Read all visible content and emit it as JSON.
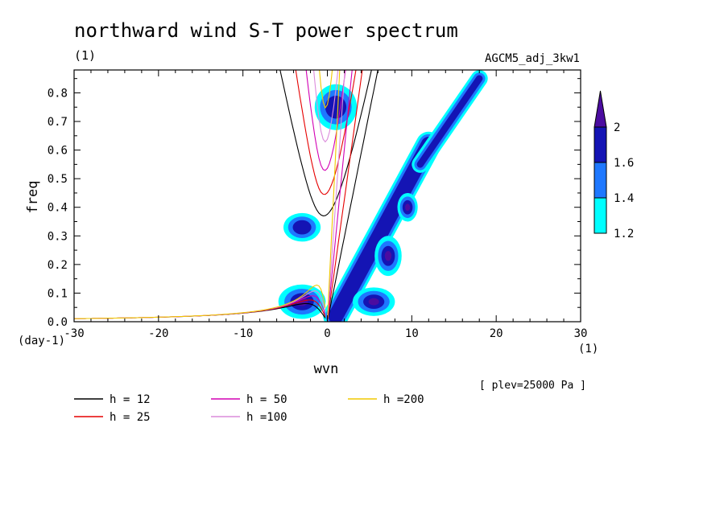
{
  "chart_data": {
    "type": "heatmap",
    "title": "northward wind S-T power spectrum",
    "subtitle_left": "(1)",
    "subtitle_right": "AGCM5_adj_3kw1",
    "xlabel": "wvn",
    "ylabel": "freq",
    "x_unit": "(1)",
    "y_unit": "(day-1)",
    "xlim": [
      -30,
      30
    ],
    "ylim": [
      0,
      0.88
    ],
    "x_ticks": [
      -30,
      -20,
      -10,
      0,
      10,
      20,
      30
    ],
    "x_tick_labels": [
      "-30",
      "-20",
      "-10",
      "0",
      "10",
      "20",
      "30"
    ],
    "y_ticks": [
      0,
      0.1,
      0.2,
      0.3,
      0.4,
      0.5,
      0.6,
      0.7,
      0.8
    ],
    "y_tick_labels": [
      "0.0",
      "0.1",
      "0.2",
      "0.3",
      "0.4",
      "0.5",
      "0.6",
      "0.7",
      "0.8"
    ],
    "annotation": "[ plev=25000 Pa ]",
    "colorbar": {
      "levels": [
        1.2,
        1.4,
        1.6,
        2
      ],
      "level_labels": [
        "1.2",
        "1.4",
        "1.6",
        "2"
      ],
      "colors": [
        "#00ffff",
        "#1e78ff",
        "#1414b4",
        "#4b0ca0"
      ]
    },
    "dispersion_curves": [
      {
        "label": "h = 12",
        "h": 12,
        "color": "#000000"
      },
      {
        "label": "h = 25",
        "h": 25,
        "color": "#e60000"
      },
      {
        "label": "h = 50",
        "h": 50,
        "color": "#d200b4"
      },
      {
        "label": "h =100",
        "h": 100,
        "color": "#dc8cdc"
      },
      {
        "label": "h =200",
        "h": 200,
        "color": "#f0c800"
      }
    ],
    "power_features": [
      {
        "name": "kelvin-band",
        "x0": 1,
        "y0": 0.02,
        "x1": 12,
        "y1": 0.62,
        "level": 1.6,
        "width": 3.0
      },
      {
        "name": "kelvin-core-low",
        "x": 5.5,
        "y": 0.07,
        "rx": 2.5,
        "ry": 0.05,
        "level": 2
      },
      {
        "name": "kelvin-core-mid",
        "x": 7.2,
        "y": 0.23,
        "rx": 1.6,
        "ry": 0.07,
        "level": 2
      },
      {
        "name": "kelvin-core-up",
        "x": 9.5,
        "y": 0.4,
        "rx": 1.2,
        "ry": 0.05,
        "level": 2
      },
      {
        "name": "mrg-blob",
        "x": -3,
        "y": 0.07,
        "rx": 2.8,
        "ry": 0.06,
        "level": 2
      },
      {
        "name": "mid-blob",
        "x": -3,
        "y": 0.33,
        "rx": 2.2,
        "ry": 0.05,
        "level": 1.6
      },
      {
        "name": "upper-column",
        "x": 1,
        "y": 0.75,
        "rx": 2.5,
        "ry": 0.08,
        "level": 1.6
      },
      {
        "name": "upper-right-band",
        "x0": 11,
        "y0": 0.55,
        "x1": 18,
        "y1": 0.85,
        "level": 1.6,
        "width": 2.0
      }
    ]
  }
}
